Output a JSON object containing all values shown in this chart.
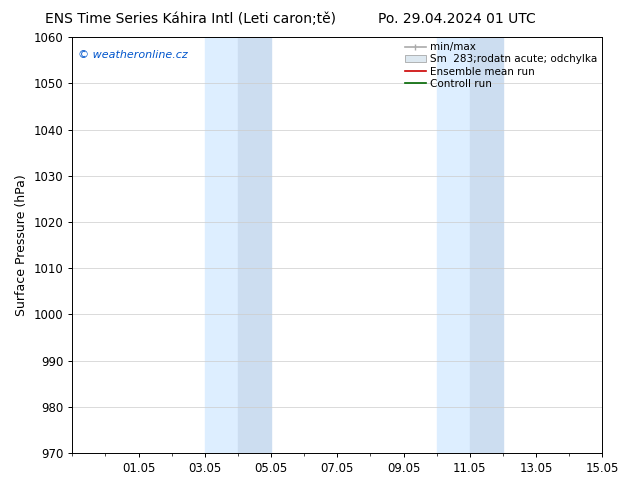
{
  "title": "ENS Time Series Káhira Intl (Leti caron;tě)",
  "title_right": "Po. 29.04.2024 01 UTC",
  "ylabel": "Surface Pressure (hPa)",
  "ylim": [
    970,
    1060
  ],
  "yticks": [
    970,
    980,
    990,
    1000,
    1010,
    1020,
    1030,
    1040,
    1050,
    1060
  ],
  "xlim": [
    0,
    16
  ],
  "xtick_labels": [
    "01.05",
    "03.05",
    "05.05",
    "07.05",
    "09.05",
    "11.05",
    "13.05",
    "15.05"
  ],
  "xtick_positions": [
    2,
    4,
    6,
    8,
    10,
    12,
    14,
    16
  ],
  "watermark": "© weatheronline.cz",
  "watermark_color": "#0055cc",
  "bg_color": "#ffffff",
  "plot_bg_color": "#ffffff",
  "shaded_columns": [
    {
      "x_start": 4.0,
      "x_end": 5.0,
      "color": "#ddeeff"
    },
    {
      "x_start": 5.0,
      "x_end": 6.0,
      "color": "#ccddf0"
    },
    {
      "x_start": 11.0,
      "x_end": 12.0,
      "color": "#ddeeff"
    },
    {
      "x_start": 12.0,
      "x_end": 13.0,
      "color": "#ccddf0"
    }
  ],
  "grid_color": "#cccccc",
  "tick_label_fontsize": 8.5,
  "axis_label_fontsize": 9,
  "title_fontsize": 10,
  "legend_fontsize": 7.5
}
